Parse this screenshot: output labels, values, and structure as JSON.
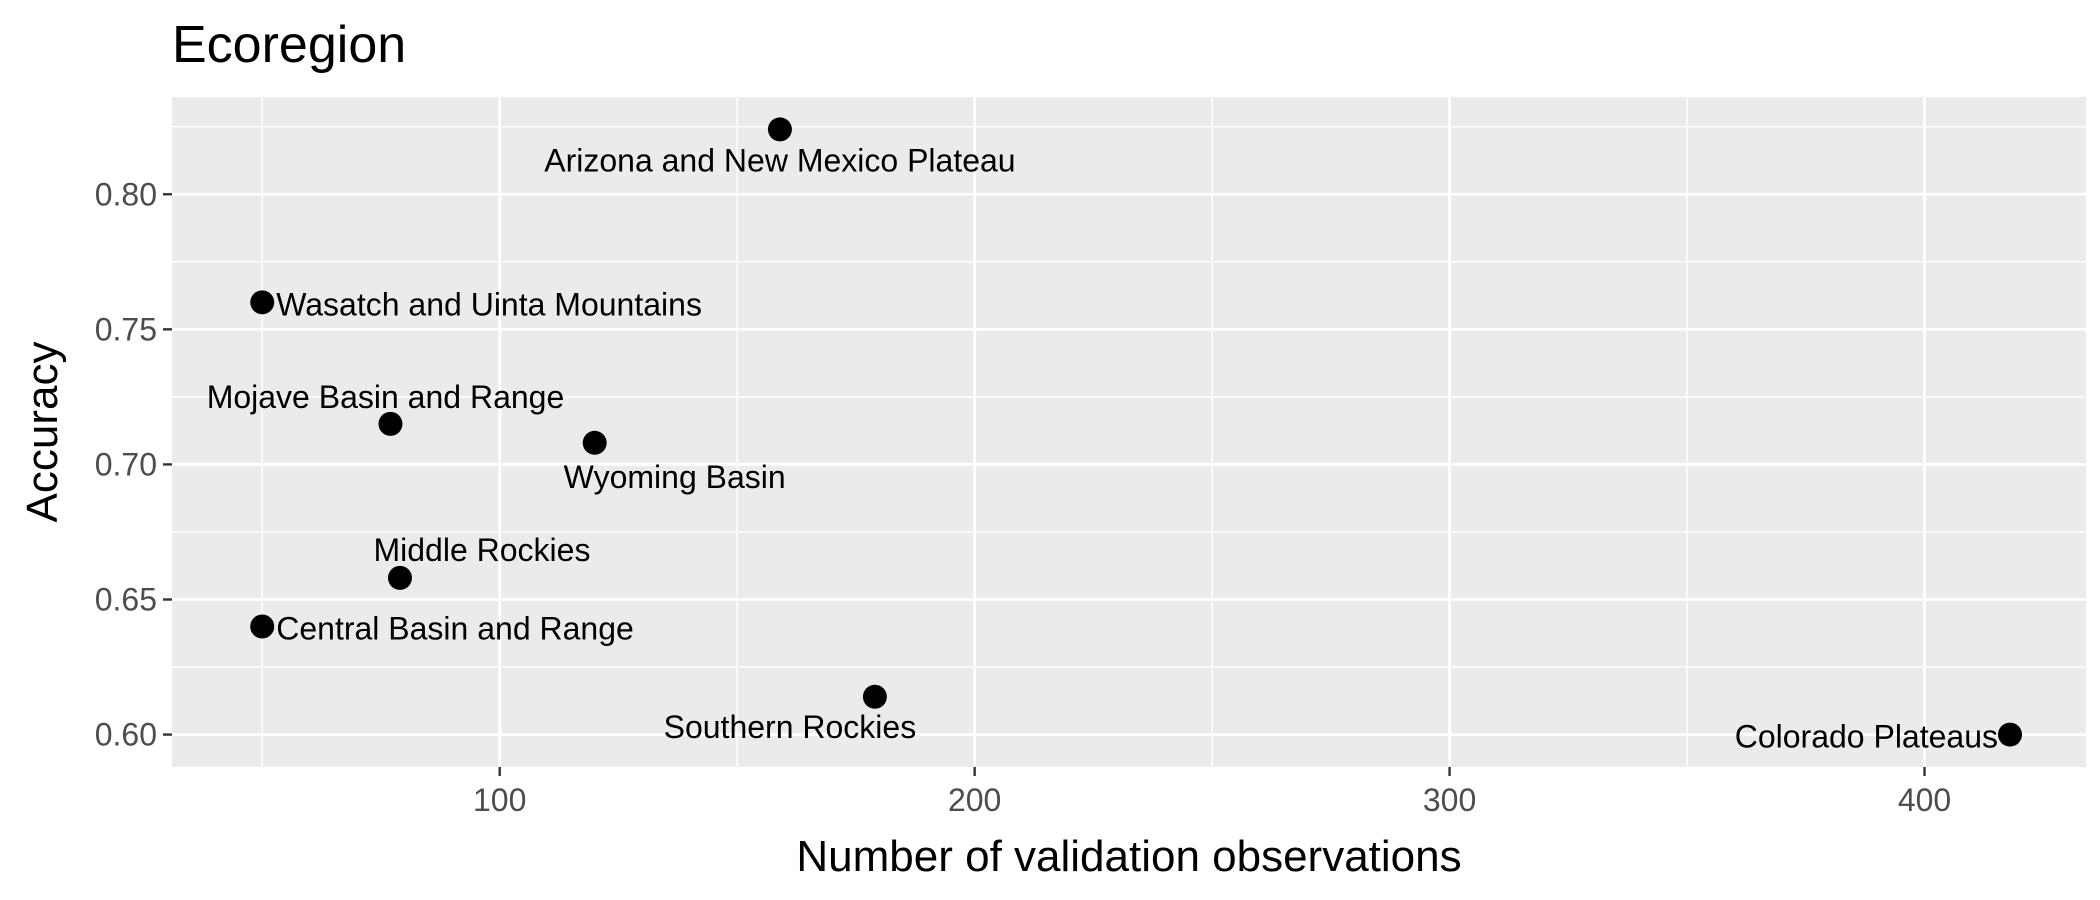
{
  "chart_data": {
    "type": "scatter",
    "title": "Ecoregion",
    "xlabel": "Number of validation observations",
    "ylabel": "Accuracy",
    "xlim": [
      31,
      434
    ],
    "ylim": [
      0.588,
      0.836
    ],
    "xticks": [
      100,
      200,
      300,
      400
    ],
    "xtick_labels": [
      "100",
      "200",
      "300",
      "400"
    ],
    "yticks": [
      0.6,
      0.65,
      0.7,
      0.75,
      0.8
    ],
    "ytick_labels": [
      "0.60",
      "0.65",
      "0.70",
      "0.75",
      "0.80"
    ],
    "grid": true,
    "panel_background": "#ebebeb",
    "grid_color": "#ffffff",
    "point_color": "#000000",
    "points": [
      {
        "label": "Arizona and New Mexico Plateau",
        "x": 159,
        "y": 0.824,
        "label_anchor": "middle",
        "label_pos": "below"
      },
      {
        "label": "Wasatch and Uinta Mountains",
        "x": 50,
        "y": 0.76,
        "label_anchor": "start",
        "label_pos": "right"
      },
      {
        "label": "Mojave Basin and Range",
        "x": 77,
        "y": 0.715,
        "label_anchor": "middle",
        "label_pos": "above-left"
      },
      {
        "label": "Wyoming Basin",
        "x": 120,
        "y": 0.708,
        "label_anchor": "middle",
        "label_pos": "below-right"
      },
      {
        "label": "Middle Rockies",
        "x": 79,
        "y": 0.658,
        "label_anchor": "middle",
        "label_pos": "above-right"
      },
      {
        "label": "Central Basin and Range",
        "x": 50,
        "y": 0.64,
        "label_anchor": "start",
        "label_pos": "right"
      },
      {
        "label": "Southern Rockies",
        "x": 179,
        "y": 0.614,
        "label_anchor": "middle",
        "label_pos": "below-left"
      },
      {
        "label": "Colorado Plateaus",
        "x": 418,
        "y": 0.6,
        "label_anchor": "end",
        "label_pos": "left"
      }
    ]
  }
}
